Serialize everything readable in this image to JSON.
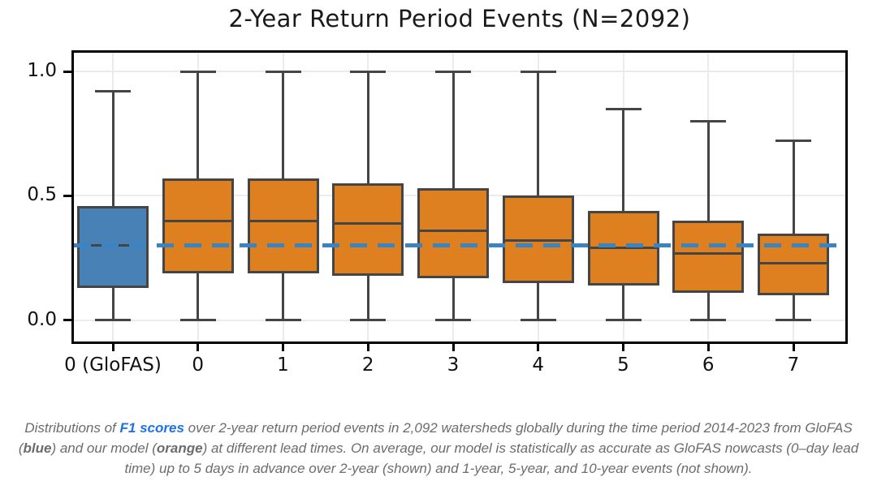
{
  "chart_data": {
    "type": "boxplot",
    "title": "2-Year Return Period Events (N=2092)",
    "xlabel": "",
    "ylabel": "",
    "categories": [
      "0 (GloFAS)",
      "0",
      "1",
      "2",
      "3",
      "4",
      "5",
      "6",
      "7"
    ],
    "boxes": [
      {
        "category": "0 (GloFAS)",
        "group": "GloFAS",
        "color_key": "blue",
        "whisker_low": 0.0,
        "q1": 0.13,
        "median": 0.3,
        "q3": 0.46,
        "whisker_high": 0.92
      },
      {
        "category": "0",
        "group": "our model",
        "color_key": "orange",
        "whisker_low": 0.0,
        "q1": 0.19,
        "median": 0.4,
        "q3": 0.57,
        "whisker_high": 1.0
      },
      {
        "category": "1",
        "group": "our model",
        "color_key": "orange",
        "whisker_low": 0.0,
        "q1": 0.19,
        "median": 0.4,
        "q3": 0.57,
        "whisker_high": 1.0
      },
      {
        "category": "2",
        "group": "our model",
        "color_key": "orange",
        "whisker_low": 0.0,
        "q1": 0.18,
        "median": 0.39,
        "q3": 0.55,
        "whisker_high": 1.0
      },
      {
        "category": "3",
        "group": "our model",
        "color_key": "orange",
        "whisker_low": 0.0,
        "q1": 0.17,
        "median": 0.36,
        "q3": 0.53,
        "whisker_high": 1.0
      },
      {
        "category": "4",
        "group": "our model",
        "color_key": "orange",
        "whisker_low": 0.0,
        "q1": 0.15,
        "median": 0.32,
        "q3": 0.5,
        "whisker_high": 1.0
      },
      {
        "category": "5",
        "group": "our model",
        "color_key": "orange",
        "whisker_low": 0.0,
        "q1": 0.14,
        "median": 0.29,
        "q3": 0.44,
        "whisker_high": 0.85
      },
      {
        "category": "6",
        "group": "our model",
        "color_key": "orange",
        "whisker_low": 0.0,
        "q1": 0.11,
        "median": 0.27,
        "q3": 0.4,
        "whisker_high": 0.8
      },
      {
        "category": "7",
        "group": "our model",
        "color_key": "orange",
        "whisker_low": 0.0,
        "q1": 0.1,
        "median": 0.23,
        "q3": 0.35,
        "whisker_high": 0.72
      }
    ],
    "reference_line": {
      "value": 0.3,
      "style": "dashed",
      "color_key": "reference_line"
    },
    "y_ticks": [
      "1.0",
      "0.5",
      "0.0"
    ],
    "y_tick_values": [
      1.0,
      0.5,
      0.0
    ],
    "ylim": [
      -0.085,
      1.075
    ],
    "grid": true,
    "legend": null
  },
  "colors": {
    "blue": "#4781B5",
    "orange": "#DF8020",
    "box_edge": "#454545",
    "reference_line": "#3B84C4",
    "grid": "#EBEBEB",
    "axis": "#000000",
    "background": "#FFFFFF",
    "caption_text": "#6C6C6C",
    "link": "#1A73E8"
  },
  "caption": {
    "segments": [
      {
        "text": "Distributions of ",
        "style": "normal"
      },
      {
        "text": "F1 scores",
        "style": "link"
      },
      {
        "text": " over 2-year return period events in 2,092 watersheds globally during the time period 2014-2023 from GloFAS (",
        "style": "normal"
      },
      {
        "text": "blue",
        "style": "bold"
      },
      {
        "text": ") and our model (",
        "style": "normal"
      },
      {
        "text": "orange",
        "style": "bold"
      },
      {
        "text": ") at different lead times. On average, our model is statistically as accurate as GloFAS nowcasts (0–day lead time) up to 5 days in advance over 2-year (shown) and 1-year, 5-year, and 10-year events (not shown).",
        "style": "normal"
      }
    ]
  }
}
